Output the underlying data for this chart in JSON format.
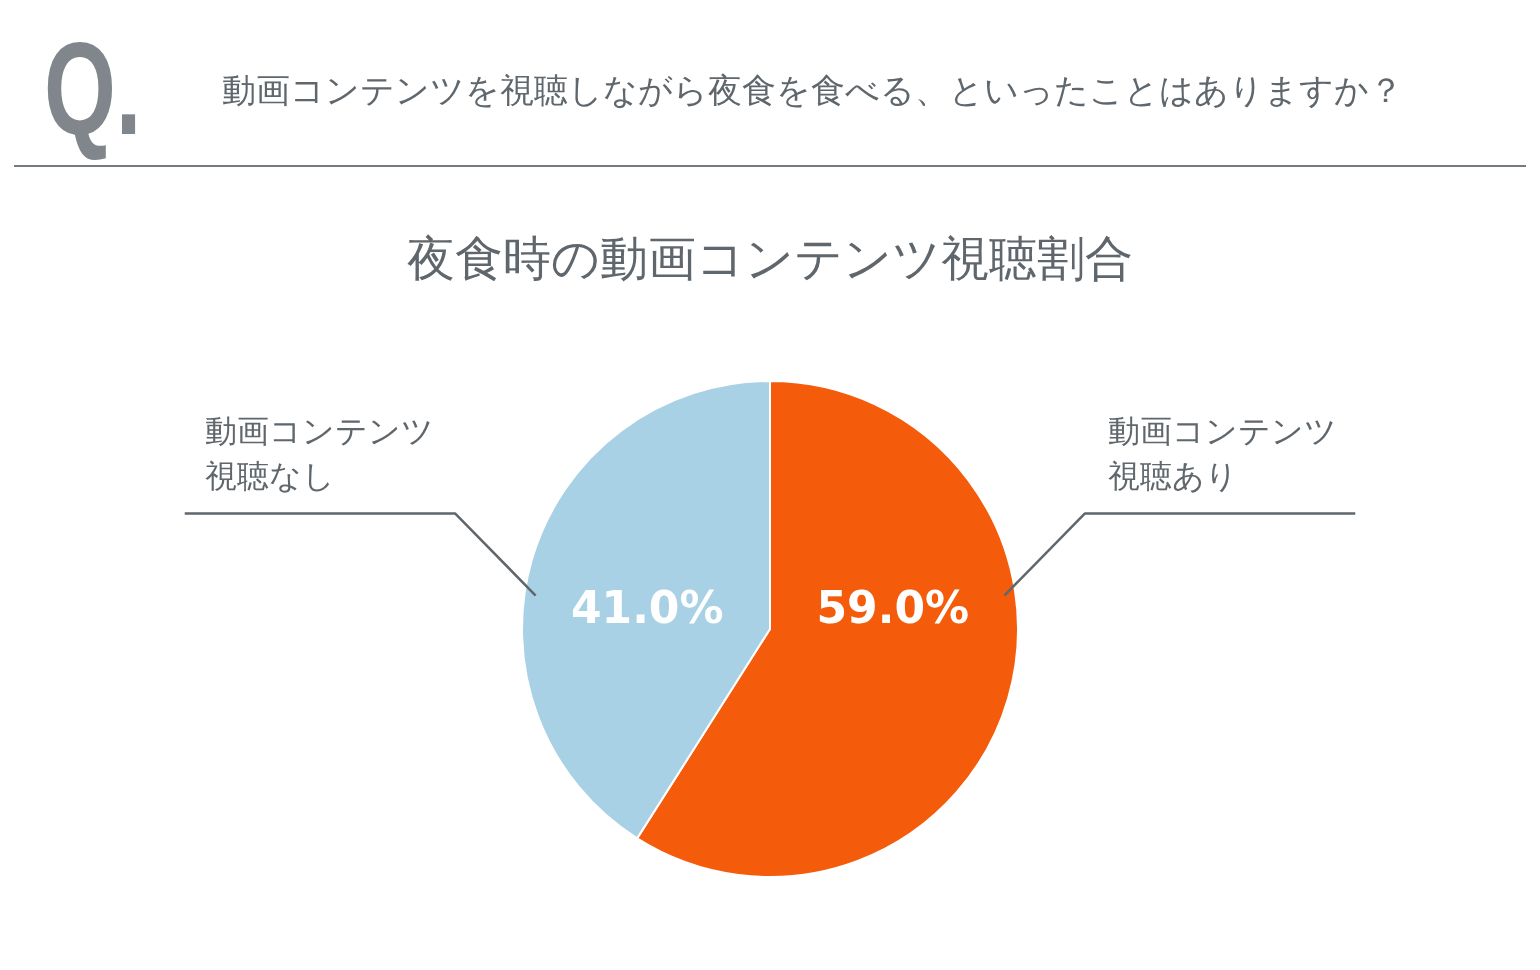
{
  "chart_data": {
    "type": "pie",
    "title": "夜食時の動画コンテンツ視聴割合",
    "annotations": [
      "Q.",
      "動画コンテンツを視聴しながら夜食を食べる、といったことはありますか？"
    ],
    "categories": [
      "動画コンテンツ視聴あり",
      "動画コンテンツ視聴なし"
    ],
    "values": [
      59.0,
      41.0
    ],
    "colors": [
      "#f45c0b",
      "#a9d1e5"
    ],
    "value_labels": [
      "59.0%",
      "41.0%"
    ]
  }
}
